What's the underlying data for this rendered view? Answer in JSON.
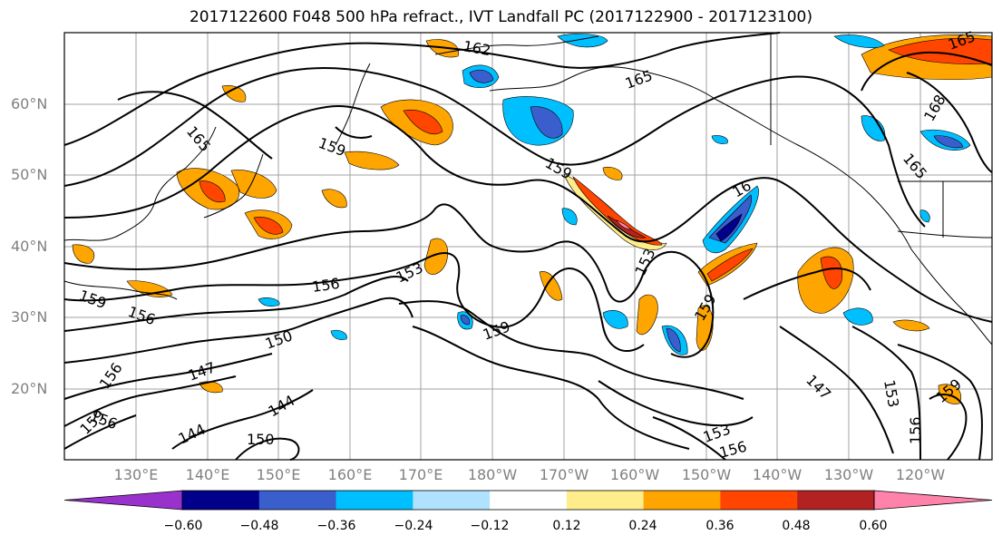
{
  "title": "2017122600 F048 500 hPa refract., IVT Landfall PC (2017122900 - 2017123100)",
  "lat_labels": [
    "60°N",
    "50°N",
    "40°N",
    "30°N",
    "20°N"
  ],
  "lon_labels": [
    "130°E",
    "140°E",
    "150°E",
    "160°E",
    "170°E",
    "180°W",
    "170°W",
    "160°W",
    "150°W",
    "140°W",
    "130°W",
    "120°W"
  ],
  "contour_labels": [
    "162",
    "165",
    "165",
    "168",
    "165",
    "159",
    "159",
    "165",
    "16",
    "159",
    "156",
    "153",
    "156",
    "150",
    "153",
    "159",
    "159",
    "147",
    "144",
    "144",
    "156",
    "150",
    "159",
    "156",
    "147",
    "153",
    "156",
    "159",
    "153",
    "156"
  ],
  "colorbar": {
    "ticks": [
      "−0.60",
      "−0.48",
      "−0.36",
      "−0.24",
      "−0.12",
      "0.12",
      "0.24",
      "0.36",
      "0.48",
      "0.60"
    ],
    "colors": [
      "#9932cc",
      "#00008b",
      "#3a5fcd",
      "#00bfff",
      "#b0e2ff",
      "#ffffff",
      "#ffec8b",
      "#ffa500",
      "#ff4500",
      "#b22222",
      "#ff82ab"
    ]
  }
}
